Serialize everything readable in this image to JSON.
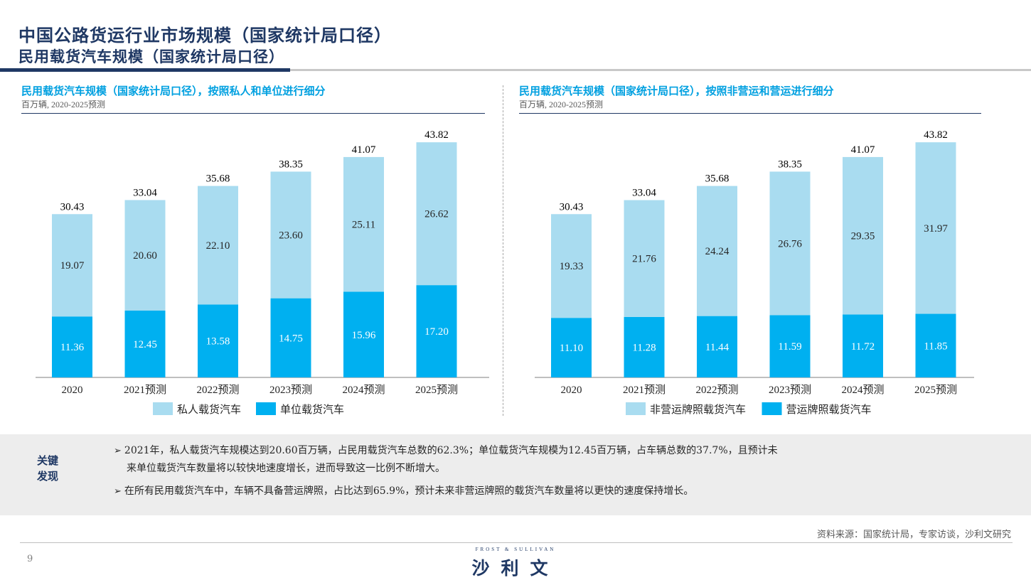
{
  "header": {
    "title": "中国公路货运行业市场规模（国家统计局口径）",
    "subtitle": "民用载货汽车规模（国家统计局口径）"
  },
  "colors": {
    "primary": "#1f3864",
    "accent": "#00a0e0",
    "light_bar": "#a9dcf0",
    "dark_bar": "#00b0f0"
  },
  "charts": [
    {
      "title": "民用载货汽车规模（国家统计局口径），按照私人和单位进行细分",
      "unit": "百万辆, 2020-2025预测",
      "legend": [
        "私人载货汽车",
        "单位载货汽车"
      ]
    },
    {
      "title": "民用载货汽车规模（国家统计局口径），按照非营运和营运进行细分",
      "unit": "百万辆, 2020-2025预测",
      "legend": [
        "非营运牌照载货汽车",
        "营运牌照载货汽车"
      ]
    }
  ],
  "chart_data": [
    {
      "type": "bar",
      "stacked": true,
      "categories": [
        "2020",
        "2021预测",
        "2022预测",
        "2023预测",
        "2024预测",
        "2025预测"
      ],
      "series": [
        {
          "name": "单位载货汽车",
          "values": [
            11.36,
            12.45,
            13.58,
            14.75,
            15.96,
            17.2
          ],
          "color": "#00b0f0"
        },
        {
          "name": "私人载货汽车",
          "values": [
            19.07,
            20.6,
            22.1,
            23.6,
            25.11,
            26.62
          ],
          "color": "#a9dcf0"
        }
      ],
      "totals": [
        30.43,
        33.04,
        35.68,
        38.35,
        41.07,
        43.82
      ],
      "ylim": [
        0,
        45
      ]
    },
    {
      "type": "bar",
      "stacked": true,
      "categories": [
        "2020",
        "2021预测",
        "2022预测",
        "2023预测",
        "2024预测",
        "2025预测"
      ],
      "series": [
        {
          "name": "营运牌照载货汽车",
          "values": [
            11.1,
            11.28,
            11.44,
            11.59,
            11.72,
            11.85
          ],
          "color": "#00b0f0"
        },
        {
          "name": "非营运牌照载货汽车",
          "values": [
            19.33,
            21.76,
            24.24,
            26.76,
            29.35,
            31.97
          ],
          "color": "#a9dcf0"
        }
      ],
      "totals": [
        30.43,
        33.04,
        35.68,
        38.35,
        41.07,
        43.82
      ],
      "ylim": [
        0,
        45
      ]
    }
  ],
  "findings": {
    "label_line1": "关键",
    "label_line2": "发现",
    "bullet_marker": "➢",
    "bullet1_line1": "2021年，私人载货汽车规模达到20.60百万辆，占民用载货汽车总数的62.3%；单位载货汽车规模为12.45百万辆，占车辆总数的37.7%，且预计未",
    "bullet1_line2": "来单位载货汽车数量将以较快地速度增长，进而导致这一比例不断增大。",
    "bullet2": "在所有民用载货汽车中，车辆不具备营运牌照，占比达到65.9%，预计未来非营运牌照的载货汽车数量将以更快的速度保持增长。"
  },
  "footer": {
    "source": "资料来源：国家统计局，专家访谈，沙利文研究",
    "page_number": "9",
    "logo_sub": "FROST & SULLIVAN",
    "logo_main": "沙利文"
  }
}
